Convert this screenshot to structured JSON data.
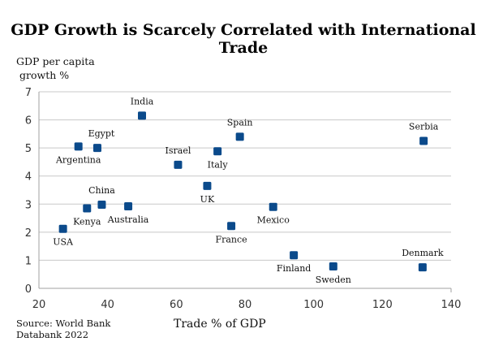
{
  "title": "GDP Growth is Scarcely Correlated with International Trade",
  "ylabel_lines": [
    "GDP per capita",
    "growth %"
  ],
  "xlabel": "Trade % of GDP",
  "source_lines": [
    "Source: World Bank",
    "Databank 2022"
  ],
  "colors": {
    "marker": "#0b4a8b",
    "grid": "#c8c8c8",
    "axis": "#a0a0a0"
  },
  "chart_data": {
    "type": "scatter",
    "title": "GDP Growth is Scarcely Correlated with International Trade",
    "xlabel": "Trade % of GDP",
    "ylabel": "GDP per capita growth %",
    "xlim": [
      20,
      140
    ],
    "ylim": [
      0,
      7
    ],
    "x_ticks": [
      20,
      40,
      60,
      80,
      100,
      120,
      140
    ],
    "y_ticks": [
      0,
      1,
      2,
      3,
      4,
      5,
      6,
      7
    ],
    "grid": "horizontal",
    "legend": "none",
    "points": [
      {
        "label": "India",
        "x": 50,
        "y": 6.15,
        "label_pos": "above"
      },
      {
        "label": "Egypt",
        "x": 37,
        "y": 5.0,
        "label_pos": "above-right"
      },
      {
        "label": "Argentina",
        "x": 31.5,
        "y": 5.05,
        "label_pos": "below"
      },
      {
        "label": "Spain",
        "x": 78.5,
        "y": 5.4,
        "label_pos": "above"
      },
      {
        "label": "Serbia",
        "x": 132,
        "y": 5.25,
        "label_pos": "above"
      },
      {
        "label": "Israel",
        "x": 60.5,
        "y": 4.4,
        "label_pos": "above"
      },
      {
        "label": "Italy",
        "x": 72,
        "y": 4.88,
        "label_pos": "below"
      },
      {
        "label": "UK",
        "x": 69,
        "y": 3.65,
        "label_pos": "below"
      },
      {
        "label": "China",
        "x": 38.3,
        "y": 2.98,
        "label_pos": "above"
      },
      {
        "label": "Kenya",
        "x": 34,
        "y": 2.85,
        "label_pos": "below"
      },
      {
        "label": "Australia",
        "x": 46,
        "y": 2.92,
        "label_pos": "below"
      },
      {
        "label": "USA",
        "x": 27,
        "y": 2.12,
        "label_pos": "below"
      },
      {
        "label": "Mexico",
        "x": 88.2,
        "y": 2.9,
        "label_pos": "below"
      },
      {
        "label": "France",
        "x": 76,
        "y": 2.22,
        "label_pos": "below"
      },
      {
        "label": "Finland",
        "x": 94.2,
        "y": 1.18,
        "label_pos": "below"
      },
      {
        "label": "Sweden",
        "x": 105.7,
        "y": 0.78,
        "label_pos": "below"
      },
      {
        "label": "Denmark",
        "x": 131.7,
        "y": 0.75,
        "label_pos": "above"
      }
    ]
  }
}
